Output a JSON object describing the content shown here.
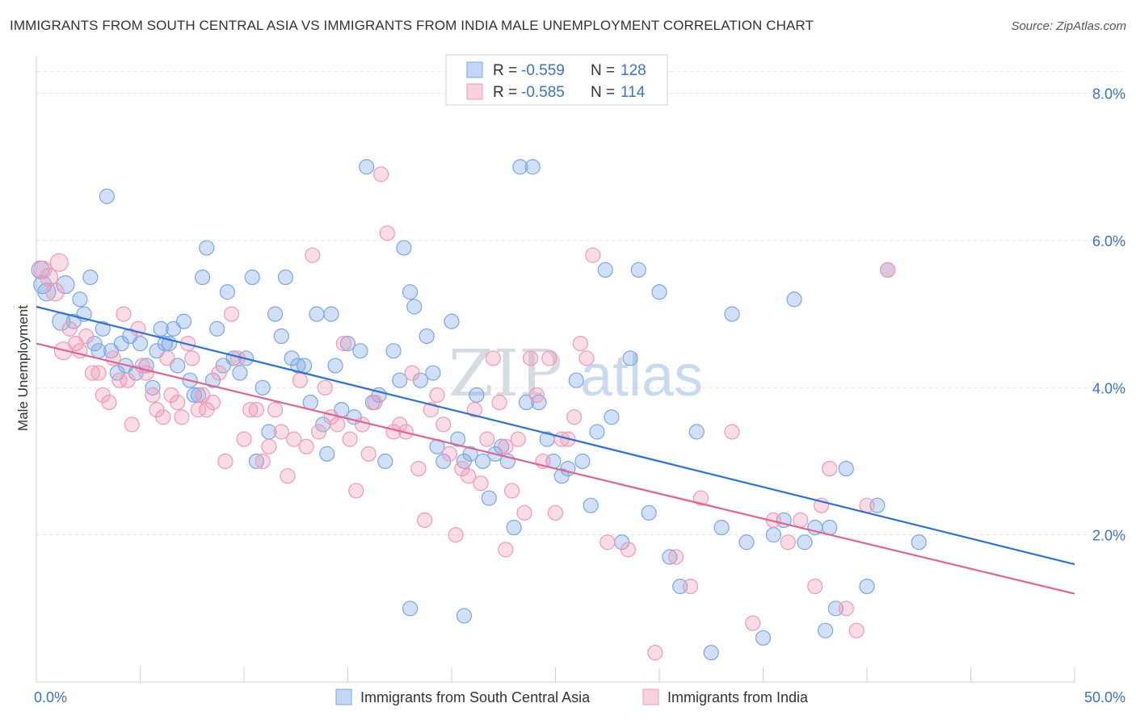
{
  "title": "IMMIGRANTS FROM SOUTH CENTRAL ASIA VS IMMIGRANTS FROM INDIA MALE UNEMPLOYMENT CORRELATION CHART",
  "source": "Source: ZipAtlas.com",
  "watermark": {
    "zip": "ZIP",
    "atlas": "atlas"
  },
  "chart_data": {
    "type": "scatter",
    "xlabel": "",
    "ylabel": "Male Unemployment",
    "xlim": [
      0,
      50
    ],
    "ylim": [
      0,
      8.5
    ],
    "x_tick_labels": [
      {
        "value": 0,
        "label": "0.0%"
      },
      {
        "value": 50,
        "label": "50.0%"
      }
    ],
    "y_tick_labels": [
      {
        "value": 2,
        "label": "2.0%"
      },
      {
        "value": 4,
        "label": "4.0%"
      },
      {
        "value": 6,
        "label": "6.0%"
      },
      {
        "value": 8,
        "label": "8.0%"
      }
    ],
    "grid": true,
    "legend_placement": "top-center",
    "legend": [
      {
        "r_label": "R =",
        "r_value": "-0.559",
        "n_label": "N =",
        "n_value": "128"
      },
      {
        "r_label": "R =",
        "r_value": "-0.585",
        "n_label": "N =",
        "n_value": "114"
      }
    ],
    "series": [
      {
        "name": "Immigrants from South Central Asia",
        "color": "#7aa7e6",
        "fill": "rgba(122,167,230,0.35)",
        "line_color": "#2f72d2",
        "trend": {
          "x": [
            0,
            50
          ],
          "y": [
            5.1,
            1.6
          ]
        },
        "points": [
          [
            0.2,
            5.6
          ],
          [
            0.3,
            5.4
          ],
          [
            0.5,
            5.3
          ],
          [
            1.2,
            4.9
          ],
          [
            1.4,
            5.4
          ],
          [
            1.8,
            4.9
          ],
          [
            2.1,
            5.2
          ],
          [
            2.3,
            5.0
          ],
          [
            2.6,
            5.5
          ],
          [
            2.8,
            4.6
          ],
          [
            3.0,
            4.5
          ],
          [
            3.2,
            4.8
          ],
          [
            3.4,
            6.6
          ],
          [
            3.6,
            4.5
          ],
          [
            3.9,
            4.2
          ],
          [
            4.1,
            4.6
          ],
          [
            4.3,
            4.3
          ],
          [
            4.5,
            4.7
          ],
          [
            4.8,
            4.2
          ],
          [
            5.0,
            4.6
          ],
          [
            5.3,
            4.3
          ],
          [
            5.6,
            4.0
          ],
          [
            5.8,
            4.5
          ],
          [
            6.0,
            4.8
          ],
          [
            6.2,
            4.6
          ],
          [
            6.4,
            4.6
          ],
          [
            6.6,
            4.8
          ],
          [
            6.8,
            4.3
          ],
          [
            7.1,
            4.9
          ],
          [
            7.4,
            4.1
          ],
          [
            7.6,
            3.9
          ],
          [
            7.8,
            3.9
          ],
          [
            8.0,
            5.5
          ],
          [
            8.2,
            5.9
          ],
          [
            8.5,
            4.1
          ],
          [
            8.7,
            4.8
          ],
          [
            9.0,
            4.3
          ],
          [
            9.2,
            5.3
          ],
          [
            9.5,
            4.4
          ],
          [
            9.8,
            4.2
          ],
          [
            10.1,
            4.4
          ],
          [
            10.4,
            5.5
          ],
          [
            10.6,
            3.0
          ],
          [
            10.9,
            4.0
          ],
          [
            11.2,
            3.4
          ],
          [
            11.5,
            5.0
          ],
          [
            11.8,
            4.7
          ],
          [
            12.0,
            5.5
          ],
          [
            12.3,
            4.4
          ],
          [
            12.6,
            4.3
          ],
          [
            12.9,
            4.3
          ],
          [
            13.2,
            3.8
          ],
          [
            13.5,
            5.0
          ],
          [
            13.8,
            3.5
          ],
          [
            14.0,
            3.1
          ],
          [
            14.2,
            5.0
          ],
          [
            14.4,
            4.3
          ],
          [
            14.7,
            3.7
          ],
          [
            15.0,
            4.6
          ],
          [
            15.3,
            3.6
          ],
          [
            15.6,
            4.5
          ],
          [
            15.9,
            7.0
          ],
          [
            16.2,
            3.8
          ],
          [
            16.5,
            3.9
          ],
          [
            16.8,
            3.0
          ],
          [
            17.2,
            4.5
          ],
          [
            17.5,
            4.1
          ],
          [
            17.7,
            5.9
          ],
          [
            18.0,
            5.3
          ],
          [
            18.2,
            5.1
          ],
          [
            18.5,
            4.1
          ],
          [
            18.8,
            4.7
          ],
          [
            19.1,
            4.2
          ],
          [
            19.3,
            3.2
          ],
          [
            19.6,
            3.0
          ],
          [
            20.0,
            4.9
          ],
          [
            20.3,
            3.3
          ],
          [
            20.6,
            3.0
          ],
          [
            20.9,
            3.1
          ],
          [
            21.2,
            3.9
          ],
          [
            21.5,
            3.0
          ],
          [
            21.8,
            2.5
          ],
          [
            22.1,
            3.1
          ],
          [
            22.4,
            3.2
          ],
          [
            22.7,
            3.0
          ],
          [
            23.0,
            2.1
          ],
          [
            23.3,
            7.0
          ],
          [
            23.6,
            3.8
          ],
          [
            23.9,
            7.0
          ],
          [
            24.2,
            3.8
          ],
          [
            24.6,
            3.3
          ],
          [
            24.9,
            3.0
          ],
          [
            25.3,
            2.8
          ],
          [
            25.6,
            2.9
          ],
          [
            26.0,
            4.1
          ],
          [
            26.3,
            3.0
          ],
          [
            26.7,
            2.4
          ],
          [
            27.0,
            3.4
          ],
          [
            27.4,
            5.6
          ],
          [
            27.7,
            3.6
          ],
          [
            28.2,
            1.9
          ],
          [
            28.6,
            4.4
          ],
          [
            29.0,
            5.6
          ],
          [
            29.5,
            2.3
          ],
          [
            30.0,
            5.3
          ],
          [
            30.5,
            1.7
          ],
          [
            31.0,
            1.3
          ],
          [
            31.8,
            3.4
          ],
          [
            32.5,
            0.4
          ],
          [
            33.0,
            2.1
          ],
          [
            33.5,
            5.0
          ],
          [
            34.2,
            1.9
          ],
          [
            35.0,
            0.6
          ],
          [
            35.5,
            2.0
          ],
          [
            36.0,
            2.2
          ],
          [
            36.5,
            5.2
          ],
          [
            37.0,
            1.9
          ],
          [
            37.5,
            2.1
          ],
          [
            38.0,
            0.7
          ],
          [
            38.5,
            1.0
          ],
          [
            39.0,
            2.9
          ],
          [
            40.0,
            1.3
          ],
          [
            40.5,
            2.4
          ],
          [
            41.0,
            5.6
          ],
          [
            42.5,
            1.9
          ],
          [
            38.2,
            2.1
          ],
          [
            18.0,
            1.0
          ],
          [
            20.6,
            0.9
          ]
        ]
      },
      {
        "name": "Immigrants from India",
        "color": "#ef9ab5",
        "fill": "rgba(239,154,181,0.35)",
        "line_color": "#e0658e",
        "trend": {
          "x": [
            0,
            50
          ],
          "y": [
            4.6,
            1.2
          ]
        },
        "points": [
          [
            0.3,
            5.6
          ],
          [
            0.6,
            5.5
          ],
          [
            0.9,
            5.3
          ],
          [
            1.1,
            5.7
          ],
          [
            1.3,
            4.5
          ],
          [
            1.6,
            4.8
          ],
          [
            1.9,
            4.6
          ],
          [
            2.1,
            4.5
          ],
          [
            2.4,
            4.7
          ],
          [
            2.7,
            4.2
          ],
          [
            3.0,
            4.2
          ],
          [
            3.2,
            3.9
          ],
          [
            3.5,
            3.8
          ],
          [
            3.7,
            4.4
          ],
          [
            4.0,
            4.1
          ],
          [
            4.2,
            5.0
          ],
          [
            4.4,
            4.1
          ],
          [
            4.6,
            3.5
          ],
          [
            4.9,
            4.8
          ],
          [
            5.1,
            4.3
          ],
          [
            5.3,
            4.2
          ],
          [
            5.6,
            3.9
          ],
          [
            5.8,
            3.7
          ],
          [
            6.1,
            3.6
          ],
          [
            6.3,
            4.4
          ],
          [
            6.5,
            3.9
          ],
          [
            6.8,
            3.8
          ],
          [
            7.0,
            3.6
          ],
          [
            7.3,
            4.6
          ],
          [
            7.5,
            4.4
          ],
          [
            7.8,
            3.7
          ],
          [
            8.0,
            3.9
          ],
          [
            8.2,
            3.7
          ],
          [
            8.5,
            3.8
          ],
          [
            8.8,
            4.2
          ],
          [
            9.1,
            3.0
          ],
          [
            9.4,
            5.0
          ],
          [
            9.7,
            4.4
          ],
          [
            10.0,
            3.3
          ],
          [
            10.3,
            3.7
          ],
          [
            10.6,
            3.7
          ],
          [
            10.9,
            3.0
          ],
          [
            11.2,
            3.2
          ],
          [
            11.5,
            3.7
          ],
          [
            11.8,
            3.4
          ],
          [
            12.1,
            2.8
          ],
          [
            12.4,
            3.3
          ],
          [
            12.7,
            4.1
          ],
          [
            13.0,
            3.2
          ],
          [
            13.3,
            5.8
          ],
          [
            13.6,
            3.4
          ],
          [
            13.9,
            4.0
          ],
          [
            14.2,
            3.6
          ],
          [
            14.5,
            3.5
          ],
          [
            14.8,
            4.6
          ],
          [
            15.1,
            3.3
          ],
          [
            15.4,
            2.6
          ],
          [
            15.7,
            3.5
          ],
          [
            16.0,
            3.1
          ],
          [
            16.3,
            3.8
          ],
          [
            16.6,
            6.9
          ],
          [
            16.9,
            6.1
          ],
          [
            17.2,
            3.4
          ],
          [
            17.5,
            3.5
          ],
          [
            17.8,
            3.4
          ],
          [
            18.1,
            4.2
          ],
          [
            18.4,
            2.9
          ],
          [
            18.7,
            2.2
          ],
          [
            19.0,
            3.7
          ],
          [
            19.3,
            3.9
          ],
          [
            19.6,
            3.5
          ],
          [
            19.9,
            3.1
          ],
          [
            20.2,
            2.0
          ],
          [
            20.5,
            2.9
          ],
          [
            20.8,
            2.8
          ],
          [
            21.1,
            3.7
          ],
          [
            21.4,
            2.7
          ],
          [
            21.7,
            3.3
          ],
          [
            22.0,
            4.4
          ],
          [
            22.3,
            3.8
          ],
          [
            22.6,
            3.2
          ],
          [
            22.9,
            2.6
          ],
          [
            23.2,
            3.3
          ],
          [
            23.5,
            2.3
          ],
          [
            23.8,
            4.4
          ],
          [
            24.1,
            3.9
          ],
          [
            24.4,
            3.0
          ],
          [
            24.7,
            4.4
          ],
          [
            25.0,
            2.3
          ],
          [
            25.3,
            3.3
          ],
          [
            25.6,
            3.3
          ],
          [
            25.9,
            3.6
          ],
          [
            26.2,
            4.6
          ],
          [
            26.5,
            4.4
          ],
          [
            26.8,
            5.8
          ],
          [
            27.5,
            1.9
          ],
          [
            28.5,
            1.8
          ],
          [
            29.8,
            0.4
          ],
          [
            30.8,
            1.7
          ],
          [
            31.5,
            1.3
          ],
          [
            32.0,
            2.5
          ],
          [
            33.5,
            3.4
          ],
          [
            34.5,
            0.8
          ],
          [
            35.5,
            2.2
          ],
          [
            36.2,
            1.9
          ],
          [
            36.8,
            2.2
          ],
          [
            37.5,
            1.3
          ],
          [
            38.2,
            2.9
          ],
          [
            39.0,
            1.0
          ],
          [
            39.5,
            0.7
          ],
          [
            40.0,
            2.4
          ],
          [
            41.0,
            5.6
          ],
          [
            37.8,
            2.4
          ],
          [
            22.6,
            1.8
          ]
        ]
      }
    ]
  },
  "bottom_legend": [
    {
      "label": "Immigrants from South Central Asia"
    },
    {
      "label": "Immigrants from India"
    }
  ]
}
